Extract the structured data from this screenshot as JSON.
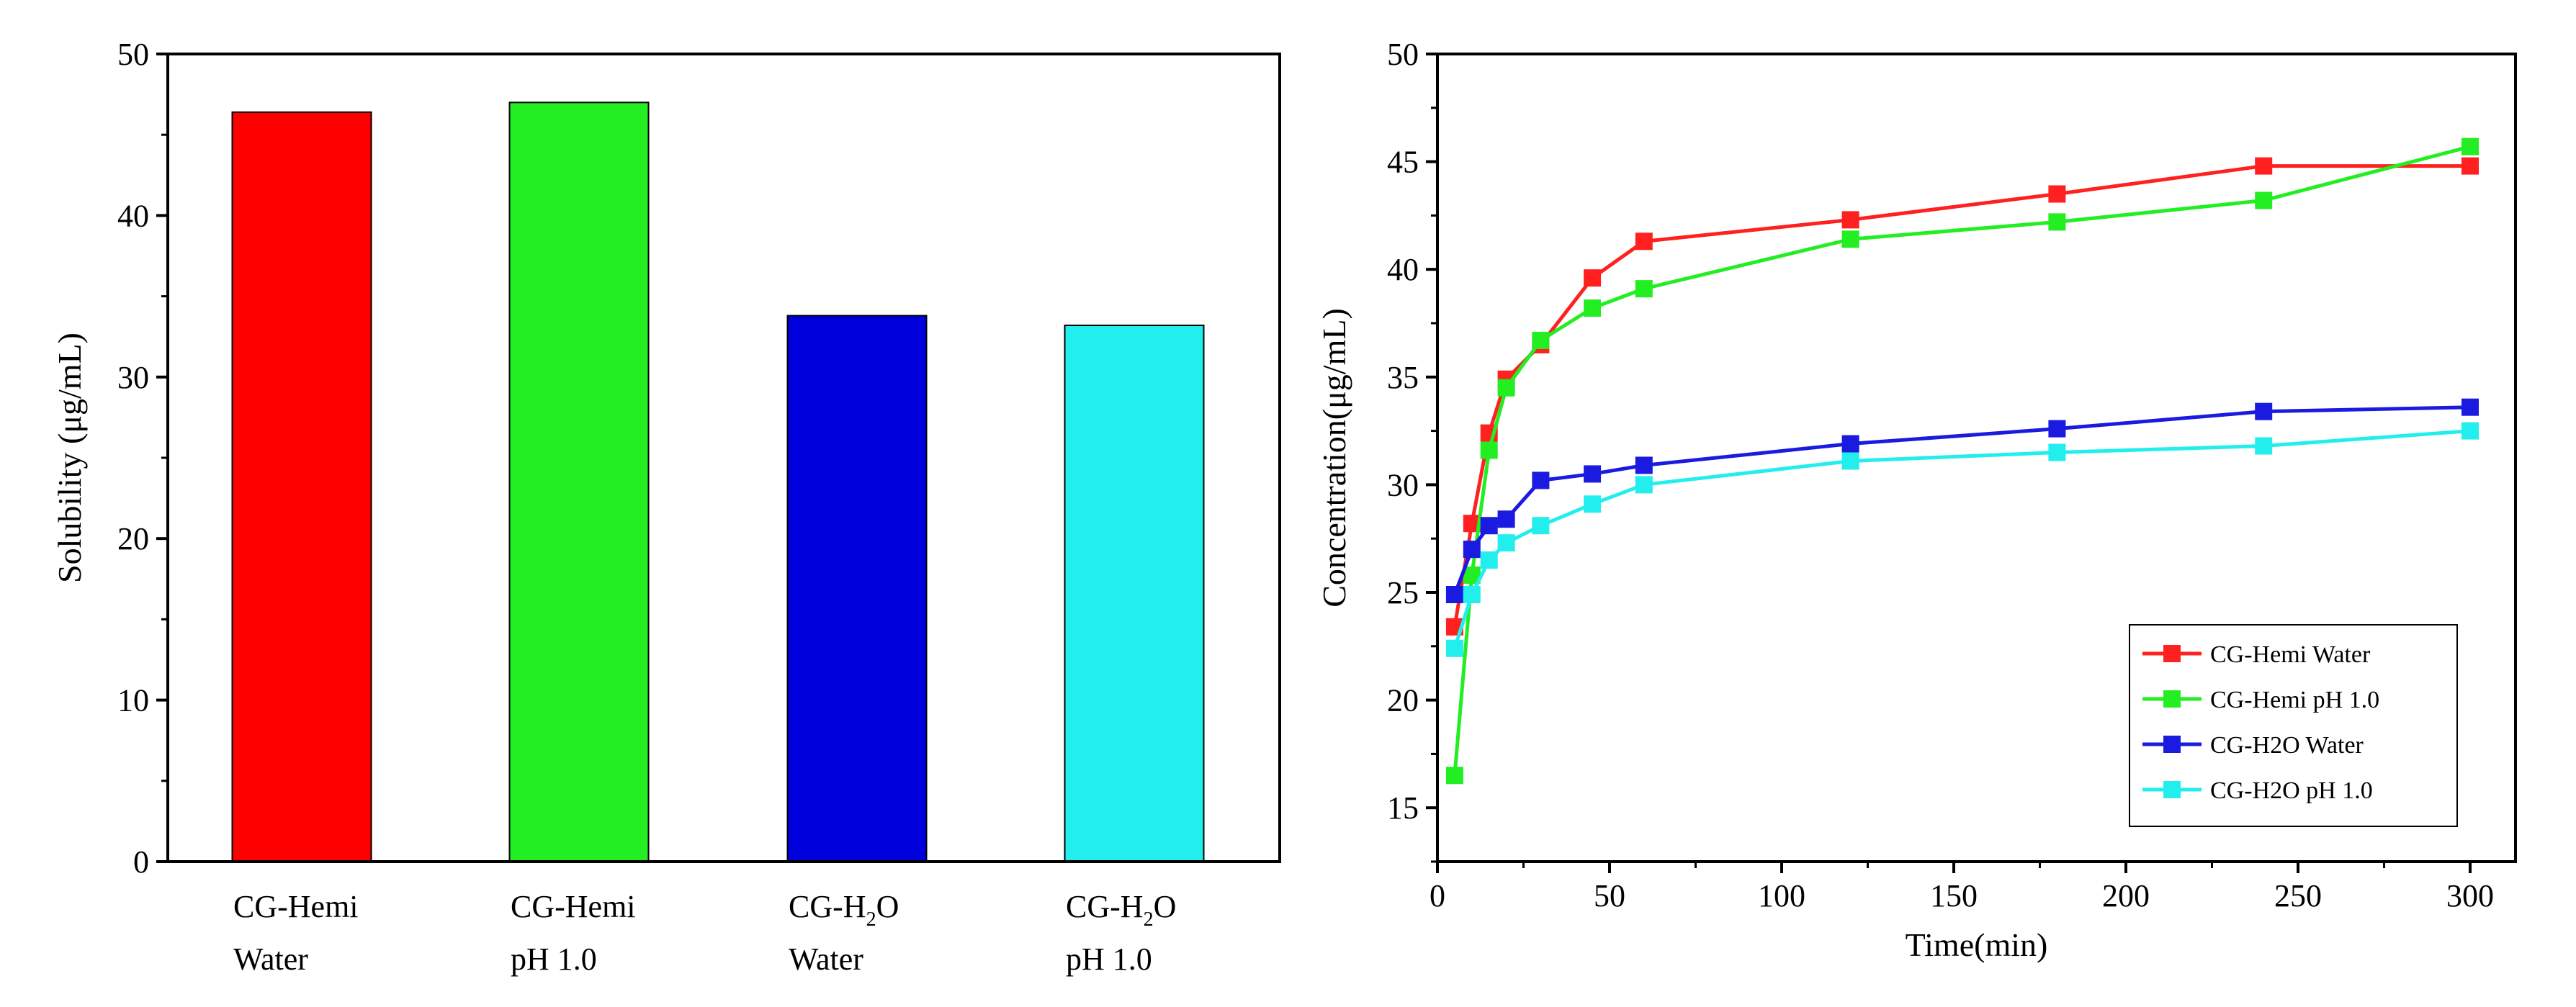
{
  "chart_data": [
    {
      "type": "bar",
      "title": "",
      "xlabel": "",
      "ylabel": "Solubility (μg/mL)",
      "ylim": [
        0,
        50
      ],
      "yticks": [
        0,
        10,
        20,
        30,
        40,
        50
      ],
      "categories": [
        {
          "line1": {
            "text": "CG-Hemi",
            "sub": "",
            "tail": ""
          },
          "line2": "Water"
        },
        {
          "line1": {
            "text": "CG-Hemi",
            "sub": "",
            "tail": ""
          },
          "line2": "pH 1.0"
        },
        {
          "line1": {
            "text": "CG-H",
            "sub": "2",
            "tail": "O"
          },
          "line2": "Water"
        },
        {
          "line1": {
            "text": "CG-H",
            "sub": "2",
            "tail": "O"
          },
          "line2": "pH 1.0"
        }
      ],
      "values": [
        46.4,
        47.0,
        33.8,
        33.2
      ],
      "colors": [
        "#ff0000",
        "#22ee22",
        "#0000dd",
        "#22eeee"
      ]
    },
    {
      "type": "line",
      "title": "",
      "xlabel": "Time(min)",
      "ylabel": "Concentration(μg/mL)",
      "xlim": [
        0,
        300
      ],
      "ylim": [
        12.5,
        50
      ],
      "xticks": [
        0,
        50,
        100,
        150,
        200,
        250,
        300
      ],
      "yticks": [
        15,
        20,
        25,
        30,
        35,
        40,
        45,
        50
      ],
      "legend_position": "bottom-right",
      "x": [
        5,
        10,
        15,
        20,
        30,
        45,
        60,
        120,
        180,
        240,
        300
      ],
      "series": [
        {
          "name": "CG-Hemi Water",
          "color": "#ff2020",
          "values": [
            23.4,
            28.2,
            32.4,
            34.9,
            36.5,
            39.6,
            41.3,
            42.3,
            43.5,
            44.8,
            44.8
          ]
        },
        {
          "name": "CG-Hemi pH 1.0",
          "color": "#22ee22",
          "values": [
            16.5,
            25.8,
            31.6,
            34.5,
            36.7,
            38.2,
            39.1,
            41.4,
            42.2,
            43.2,
            45.7
          ]
        },
        {
          "name": "CG-H2O Water",
          "color": "#1a1ae0",
          "values": [
            24.9,
            27.0,
            28.1,
            28.4,
            30.2,
            30.5,
            30.9,
            31.9,
            32.6,
            33.4,
            33.6
          ]
        },
        {
          "name": "CG-H2O pH 1.0",
          "color": "#22eeee",
          "values": [
            22.4,
            24.9,
            26.5,
            27.3,
            28.1,
            29.1,
            30.0,
            31.1,
            31.5,
            31.8,
            32.5
          ]
        }
      ]
    }
  ]
}
